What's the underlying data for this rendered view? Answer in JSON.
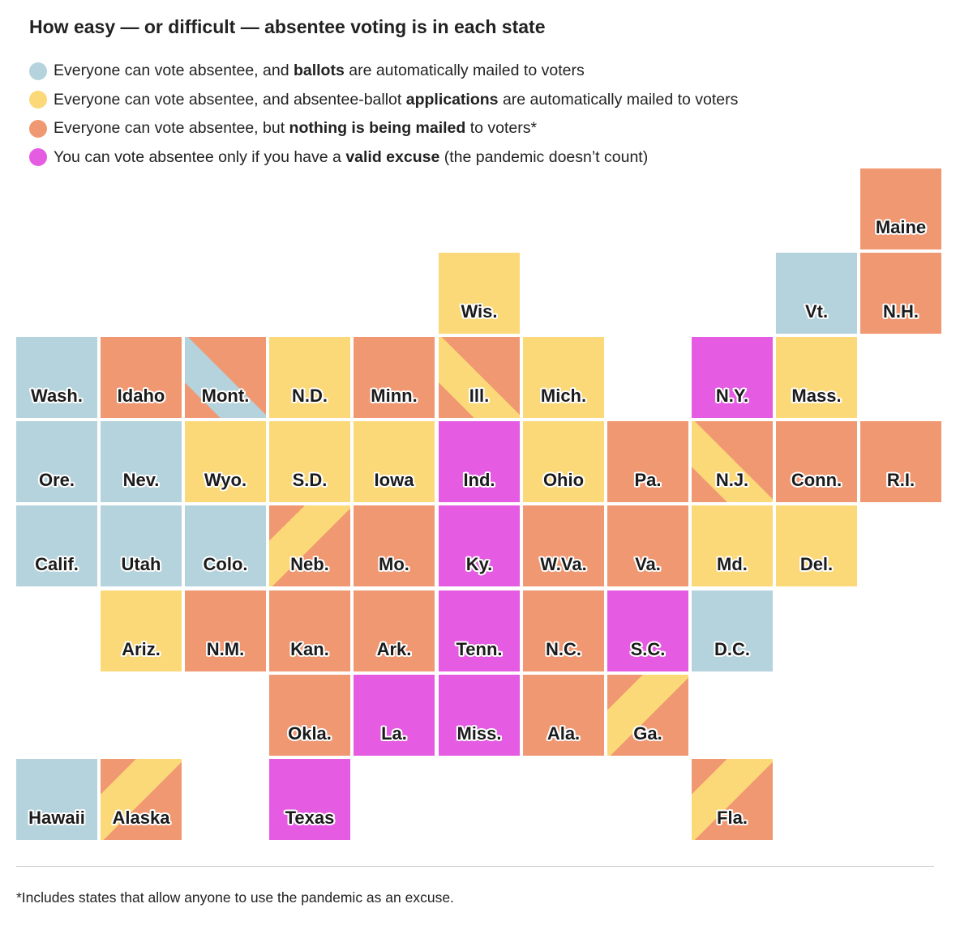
{
  "title": "How easy — or difficult — absentee voting is in each state",
  "colors": {
    "ballots": "#b5d3dc",
    "applications": "#fcd978",
    "nothing": "#f09872",
    "excuse": "#e55ce3"
  },
  "legend": [
    {
      "key": "ballots",
      "pre": "Everyone can vote absentee, and ",
      "bold": "ballots",
      "post": " are automatically mailed to voters"
    },
    {
      "key": "applications",
      "pre": "Everyone can vote absentee, and absentee-ballot ",
      "bold": "applications",
      "post": " are automatically mailed to voters"
    },
    {
      "key": "nothing",
      "pre": "Everyone can vote absentee, but ",
      "bold": "nothing is being mailed",
      "post": " to voters*"
    },
    {
      "key": "excuse",
      "pre": "You can vote absentee only if you have a ",
      "bold": "valid excuse",
      "post": " (the pandemic doesn’t count)"
    }
  ],
  "map_data": {
    "states": [
      {
        "label": "Maine",
        "row": 0,
        "col": 10,
        "fill": "nothing"
      },
      {
        "label": "Wis.",
        "row": 1,
        "col": 5,
        "fill": "applications"
      },
      {
        "label": "Vt.",
        "row": 1,
        "col": 9,
        "fill": "ballots"
      },
      {
        "label": "N.H.",
        "row": 1,
        "col": 10,
        "fill": "nothing"
      },
      {
        "label": "Wash.",
        "row": 2,
        "col": 0,
        "fill": "ballots"
      },
      {
        "label": "Idaho",
        "row": 2,
        "col": 1,
        "fill": "nothing"
      },
      {
        "label": "Mont.",
        "row": 2,
        "col": 2,
        "fill": "stripe",
        "stripe": [
          "nothing",
          "ballots",
          "nothing"
        ]
      },
      {
        "label": "N.D.",
        "row": 2,
        "col": 3,
        "fill": "applications"
      },
      {
        "label": "Minn.",
        "row": 2,
        "col": 4,
        "fill": "nothing"
      },
      {
        "label": "Ill.",
        "row": 2,
        "col": 5,
        "fill": "stripe",
        "stripe": [
          "nothing",
          "applications",
          "nothing"
        ]
      },
      {
        "label": "Mich.",
        "row": 2,
        "col": 6,
        "fill": "applications"
      },
      {
        "label": "N.Y.",
        "row": 2,
        "col": 8,
        "fill": "excuse"
      },
      {
        "label": "Mass.",
        "row": 2,
        "col": 9,
        "fill": "applications"
      },
      {
        "label": "Ore.",
        "row": 3,
        "col": 0,
        "fill": "ballots"
      },
      {
        "label": "Nev.",
        "row": 3,
        "col": 1,
        "fill": "ballots"
      },
      {
        "label": "Wyo.",
        "row": 3,
        "col": 2,
        "fill": "applications"
      },
      {
        "label": "S.D.",
        "row": 3,
        "col": 3,
        "fill": "applications"
      },
      {
        "label": "Iowa",
        "row": 3,
        "col": 4,
        "fill": "applications"
      },
      {
        "label": "Ind.",
        "row": 3,
        "col": 5,
        "fill": "excuse"
      },
      {
        "label": "Ohio",
        "row": 3,
        "col": 6,
        "fill": "applications"
      },
      {
        "label": "Pa.",
        "row": 3,
        "col": 7,
        "fill": "nothing"
      },
      {
        "label": "N.J.",
        "row": 3,
        "col": 8,
        "fill": "stripe",
        "stripe": [
          "nothing",
          "applications",
          "nothing"
        ]
      },
      {
        "label": "Conn.",
        "row": 3,
        "col": 9,
        "fill": "nothing"
      },
      {
        "label": "R.I.",
        "row": 3,
        "col": 10,
        "fill": "nothing"
      },
      {
        "label": "Calif.",
        "row": 4,
        "col": 0,
        "fill": "ballots"
      },
      {
        "label": "Utah",
        "row": 4,
        "col": 1,
        "fill": "ballots"
      },
      {
        "label": "Colo.",
        "row": 4,
        "col": 2,
        "fill": "ballots"
      },
      {
        "label": "Neb.",
        "row": 4,
        "col": 3,
        "fill": "stripe",
        "stripe": [
          "nothing",
          "applications",
          "nothing"
        ],
        "dir": "down"
      },
      {
        "label": "Mo.",
        "row": 4,
        "col": 4,
        "fill": "nothing"
      },
      {
        "label": "Ky.",
        "row": 4,
        "col": 5,
        "fill": "excuse"
      },
      {
        "label": "W.Va.",
        "row": 4,
        "col": 6,
        "fill": "nothing"
      },
      {
        "label": "Va.",
        "row": 4,
        "col": 7,
        "fill": "nothing"
      },
      {
        "label": "Md.",
        "row": 4,
        "col": 8,
        "fill": "applications"
      },
      {
        "label": "Del.",
        "row": 4,
        "col": 9,
        "fill": "applications"
      },
      {
        "label": "Ariz.",
        "row": 5,
        "col": 1,
        "fill": "applications"
      },
      {
        "label": "N.M.",
        "row": 5,
        "col": 2,
        "fill": "nothing"
      },
      {
        "label": "Kan.",
        "row": 5,
        "col": 3,
        "fill": "nothing"
      },
      {
        "label": "Ark.",
        "row": 5,
        "col": 4,
        "fill": "nothing"
      },
      {
        "label": "Tenn.",
        "row": 5,
        "col": 5,
        "fill": "excuse"
      },
      {
        "label": "N.C.",
        "row": 5,
        "col": 6,
        "fill": "nothing"
      },
      {
        "label": "S.C.",
        "row": 5,
        "col": 7,
        "fill": "excuse"
      },
      {
        "label": "D.C.",
        "row": 5,
        "col": 8,
        "fill": "ballots"
      },
      {
        "label": "Okla.",
        "row": 6,
        "col": 3,
        "fill": "nothing"
      },
      {
        "label": "La.",
        "row": 6,
        "col": 4,
        "fill": "excuse"
      },
      {
        "label": "Miss.",
        "row": 6,
        "col": 5,
        "fill": "excuse"
      },
      {
        "label": "Ala.",
        "row": 6,
        "col": 6,
        "fill": "nothing"
      },
      {
        "label": "Ga.",
        "row": 6,
        "col": 7,
        "fill": "stripe",
        "stripe": [
          "nothing",
          "applications",
          "nothing"
        ],
        "dir": "down"
      },
      {
        "label": "Hawaii",
        "row": 7,
        "col": 0,
        "fill": "ballots"
      },
      {
        "label": "Alaska",
        "row": 7,
        "col": 1,
        "fill": "stripe",
        "stripe": [
          "nothing",
          "applications",
          "nothing"
        ],
        "dir": "down"
      },
      {
        "label": "Texas",
        "row": 7,
        "col": 3,
        "fill": "excuse"
      },
      {
        "label": "Fla.",
        "row": 7,
        "col": 8,
        "fill": "stripe",
        "stripe": [
          "nothing",
          "applications",
          "nothing"
        ],
        "dir": "down"
      }
    ]
  },
  "footnote": "*Includes states that allow anyone to use the pandemic as an excuse."
}
